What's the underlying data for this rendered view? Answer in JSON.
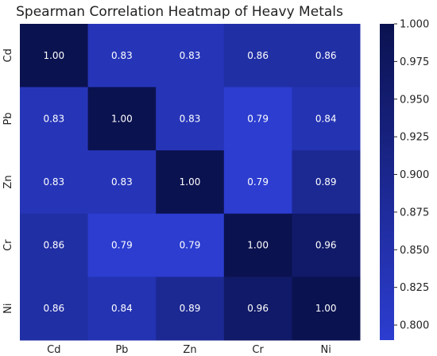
{
  "chart_data": {
    "type": "heatmap",
    "title": "Spearman Correlation Heatmap of Heavy Metals",
    "x_categories": [
      "Cd",
      "Pb",
      "Zn",
      "Cr",
      "Ni"
    ],
    "y_categories": [
      "Cd",
      "Pb",
      "Zn",
      "Cr",
      "Ni"
    ],
    "values": [
      [
        1.0,
        0.83,
        0.83,
        0.86,
        0.86
      ],
      [
        0.83,
        1.0,
        0.83,
        0.79,
        0.84
      ],
      [
        0.83,
        0.83,
        1.0,
        0.79,
        0.89
      ],
      [
        0.86,
        0.79,
        0.79,
        1.0,
        0.96
      ],
      [
        0.86,
        0.84,
        0.89,
        0.96,
        1.0
      ]
    ],
    "value_format": "0.00",
    "colorbar": {
      "range": [
        0.79,
        1.0
      ],
      "ticks": [
        "0.800",
        "0.825",
        "0.850",
        "0.875",
        "0.900",
        "0.925",
        "0.950",
        "0.975",
        "1.000"
      ],
      "color_low": "#2c3dd0",
      "color_high": "#0b1250"
    }
  }
}
